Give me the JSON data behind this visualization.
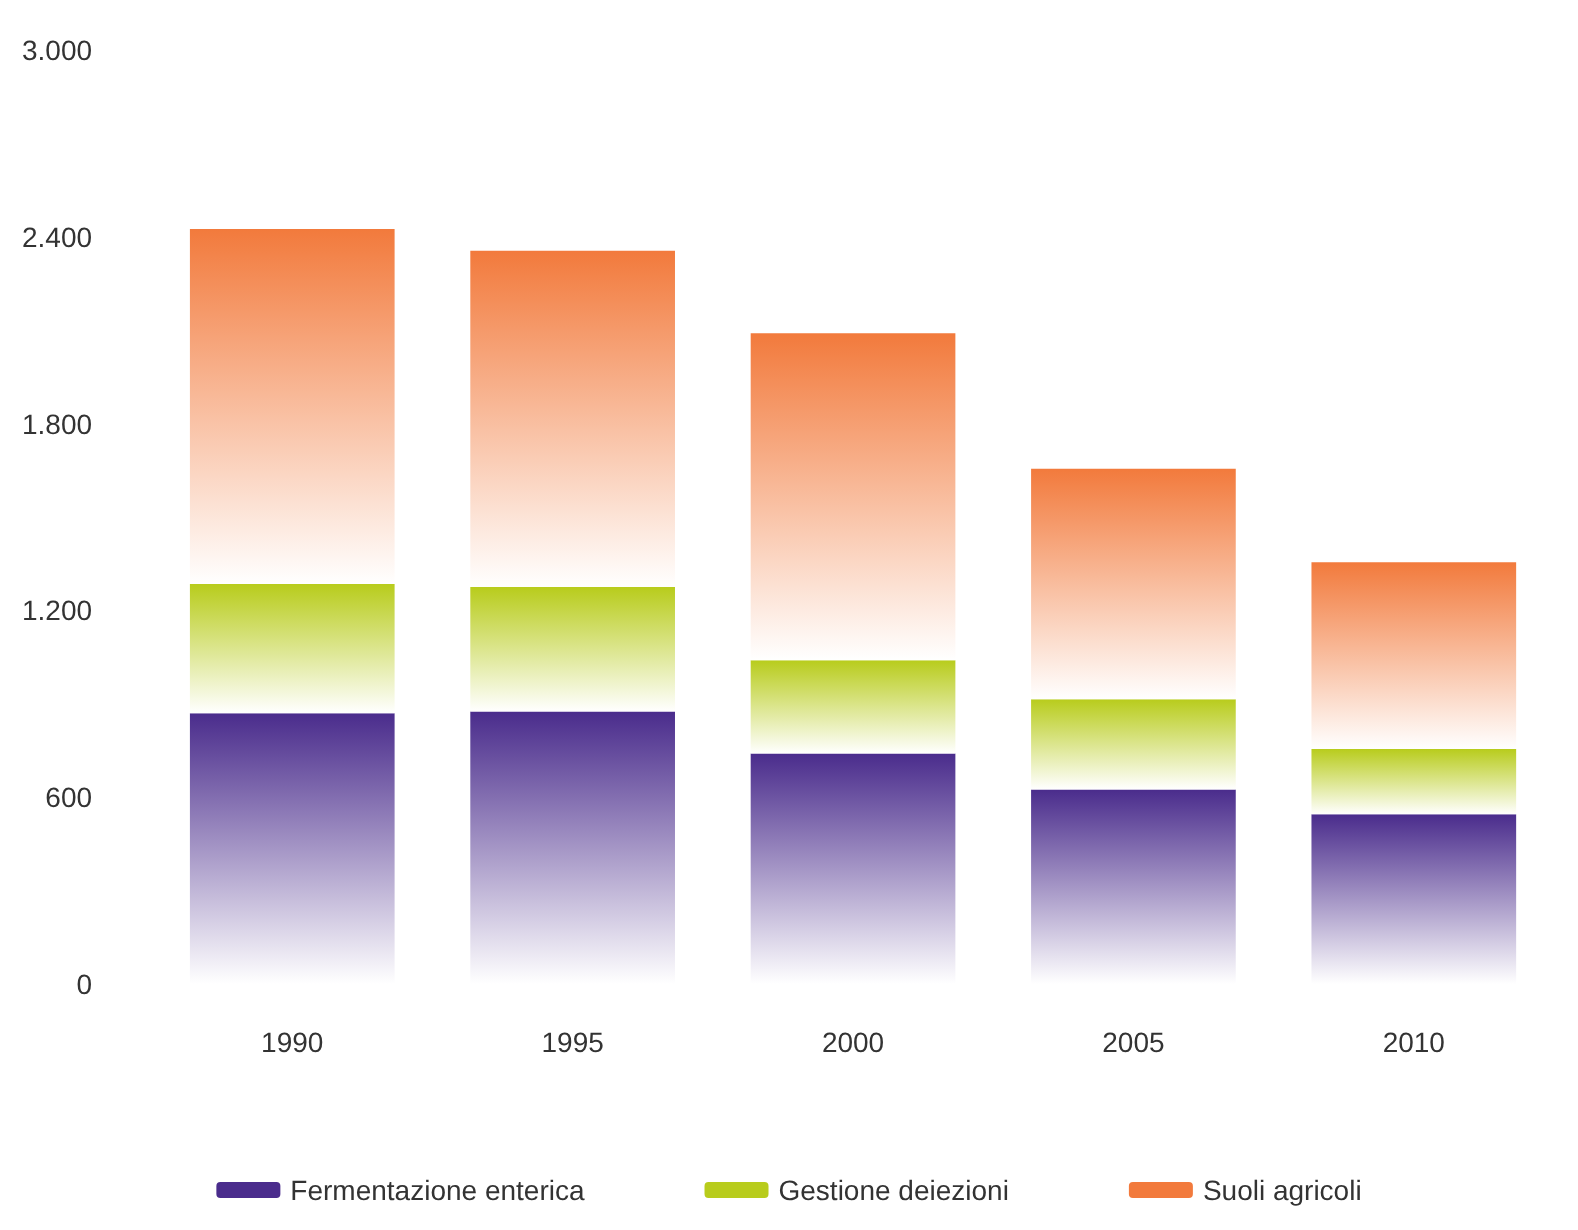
{
  "chart_data": {
    "type": "bar",
    "stacked": true,
    "categories": [
      "1990",
      "1995",
      "2000",
      "2005",
      "2010"
    ],
    "series": [
      {
        "name": "Fermentazione enterica",
        "color": "#4a2c8c",
        "values": [
          870,
          875,
          740,
          625,
          545
        ]
      },
      {
        "name": "Gestione deiezioni",
        "color": "#b8cc1c",
        "values": [
          415,
          400,
          300,
          290,
          210
        ]
      },
      {
        "name": "Suoli agricoli",
        "color": "#f27a3c",
        "values": [
          1140,
          1080,
          1050,
          740,
          600
        ]
      }
    ],
    "ylim": [
      0,
      3000
    ],
    "yticks": [
      {
        "value": 0,
        "label": "0"
      },
      {
        "value": 600,
        "label": "600"
      },
      {
        "value": 1200,
        "label": "1.200"
      },
      {
        "value": 1800,
        "label": "1.800"
      },
      {
        "value": 2400,
        "label": "2.400"
      },
      {
        "value": 3000,
        "label": "3.000"
      }
    ],
    "grid": false,
    "legend": "bottom"
  }
}
